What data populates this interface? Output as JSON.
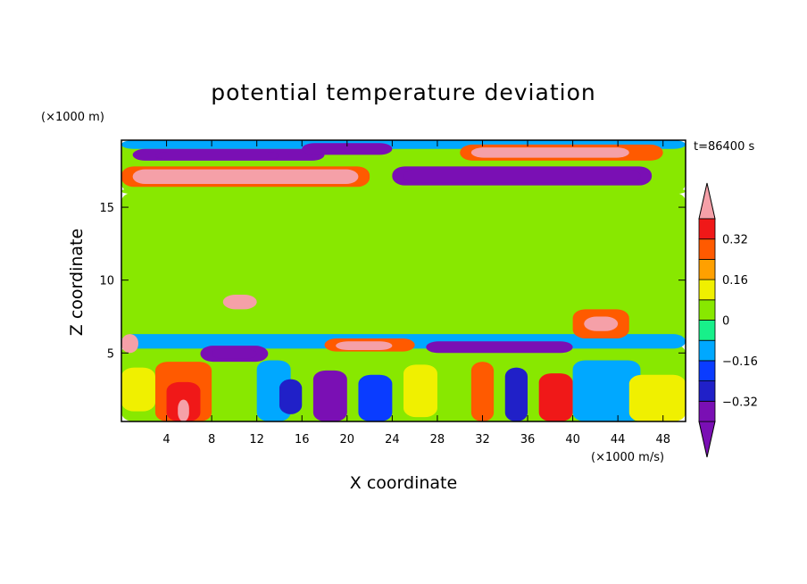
{
  "chart_data": {
    "type": "heatmap",
    "title": "potential temperature deviation",
    "xlabel": "X coordinate",
    "ylabel": "Z coordinate",
    "x_unit": "(×1000 m/s)",
    "y_unit": "(×1000 m)",
    "time_label": "t=86400 s",
    "xlim": [
      0,
      50
    ],
    "ylim": [
      0.3,
      19.6
    ],
    "xticks": [
      4,
      8,
      12,
      16,
      20,
      24,
      28,
      32,
      36,
      40,
      44,
      48
    ],
    "yticks": [
      5,
      10,
      15
    ],
    "colorbar": {
      "levels": [
        -0.4,
        -0.32,
        -0.24,
        -0.16,
        -0.08,
        0,
        0.08,
        0.16,
        0.24,
        0.32,
        0.4
      ],
      "labels": [
        {
          "value": 0.32,
          "text": "0.32"
        },
        {
          "value": 0.16,
          "text": "0.16"
        },
        {
          "value": 0,
          "text": "0"
        },
        {
          "value": -0.16,
          "text": "−0.16"
        },
        {
          "value": -0.32,
          "text": "−0.32"
        }
      ],
      "colors": [
        "#7a0fb4",
        "#2020c8",
        "#0a3cff",
        "#00a8ff",
        "#18f08a",
        "#88e800",
        "#f0f000",
        "#ffa000",
        "#ff5a00",
        "#f01818",
        "#f5a0a8"
      ],
      "over_color": "#f5a0a8",
      "under_color": "#7a0fb4"
    },
    "regions": [
      {
        "x0": 0,
        "x1": 50,
        "y0": 16.0,
        "y1": 19.6,
        "value": 0.0
      },
      {
        "x0": 0,
        "x1": 50,
        "y0": 0.3,
        "y1": 5.6,
        "value": 0.0
      },
      {
        "x0": 0,
        "x1": 50,
        "y0": 5.6,
        "y1": 16.0,
        "value": 0.06
      },
      {
        "x0": 20,
        "x1": 50,
        "y0": 5.6,
        "y1": 16.0,
        "value": 0.0
      },
      {
        "x0": 0,
        "x1": 14,
        "y0": 10.5,
        "y1": 16.0,
        "value": 0.06
      },
      {
        "x0": 0,
        "x1": 50,
        "y0": 19.0,
        "y1": 19.6,
        "value": -0.1
      },
      {
        "x0": 1,
        "x1": 18,
        "y0": 18.2,
        "y1": 19.0,
        "value": -0.34
      },
      {
        "x0": 3,
        "x1": 14,
        "y0": 18.3,
        "y1": 18.8,
        "value": -0.42
      },
      {
        "x0": 16,
        "x1": 24,
        "y0": 18.6,
        "y1": 19.4,
        "value": -0.42
      },
      {
        "x0": 30,
        "x1": 48,
        "y0": 18.2,
        "y1": 19.3,
        "value": 0.3
      },
      {
        "x0": 31,
        "x1": 45,
        "y0": 18.4,
        "y1": 19.1,
        "value": 0.42
      },
      {
        "x0": 0,
        "x1": 22,
        "y0": 16.4,
        "y1": 17.8,
        "value": 0.3
      },
      {
        "x0": 1,
        "x1": 21,
        "y0": 16.6,
        "y1": 17.6,
        "value": 0.42
      },
      {
        "x0": 24,
        "x1": 47,
        "y0": 16.5,
        "y1": 17.8,
        "value": -0.34
      },
      {
        "x0": 25,
        "x1": 46,
        "y0": 16.7,
        "y1": 17.6,
        "value": -0.42
      },
      {
        "x0": 0,
        "x1": 50,
        "y0": 15.9,
        "y1": 16.3,
        "value": 0.0
      },
      {
        "x0": 0,
        "x1": 50,
        "y0": 5.3,
        "y1": 6.3,
        "value": -0.1
      },
      {
        "x0": 7,
        "x1": 13,
        "y0": 4.4,
        "y1": 5.5,
        "value": -0.34
      },
      {
        "x0": 8,
        "x1": 12,
        "y0": 4.6,
        "y1": 5.3,
        "value": -0.42
      },
      {
        "x0": 18,
        "x1": 26,
        "y0": 5.1,
        "y1": 6.0,
        "value": 0.3
      },
      {
        "x0": 19,
        "x1": 24,
        "y0": 5.2,
        "y1": 5.8,
        "value": 0.42
      },
      {
        "x0": 27,
        "x1": 40,
        "y0": 5.0,
        "y1": 5.8,
        "value": -0.34
      },
      {
        "x0": 0,
        "x1": 1.5,
        "y0": 5.0,
        "y1": 6.3,
        "value": 0.42
      },
      {
        "x0": 40,
        "x1": 45,
        "y0": 6.0,
        "y1": 8.0,
        "value": 0.3
      },
      {
        "x0": 41,
        "x1": 44,
        "y0": 6.5,
        "y1": 7.5,
        "value": 0.42
      },
      {
        "x0": 9,
        "x1": 12,
        "y0": 8.0,
        "y1": 9.0,
        "value": 0.42
      },
      {
        "x0": 3,
        "x1": 8,
        "y0": 0.3,
        "y1": 4.4,
        "value": 0.24
      },
      {
        "x0": 4,
        "x1": 7,
        "y0": 0.3,
        "y1": 3.0,
        "value": 0.34
      },
      {
        "x0": 5,
        "x1": 6,
        "y0": 0.3,
        "y1": 1.8,
        "value": 0.42
      },
      {
        "x0": 0,
        "x1": 3,
        "y0": 1.0,
        "y1": 4.0,
        "value": 0.1
      },
      {
        "x0": 12,
        "x1": 15,
        "y0": 0.3,
        "y1": 4.5,
        "value": -0.1
      },
      {
        "x0": 14,
        "x1": 16,
        "y0": 0.8,
        "y1": 3.2,
        "value": -0.26
      },
      {
        "x0": 17,
        "x1": 20,
        "y0": 0.3,
        "y1": 3.8,
        "value": -0.34
      },
      {
        "x0": 21,
        "x1": 24,
        "y0": 0.3,
        "y1": 3.5,
        "value": -0.2
      },
      {
        "x0": 25,
        "x1": 28,
        "y0": 0.6,
        "y1": 4.2,
        "value": 0.12
      },
      {
        "x0": 31,
        "x1": 33,
        "y0": 0.3,
        "y1": 4.4,
        "value": 0.3
      },
      {
        "x0": 34,
        "x1": 36,
        "y0": 0.3,
        "y1": 4.0,
        "value": -0.3
      },
      {
        "x0": 37,
        "x1": 40,
        "y0": 0.3,
        "y1": 3.6,
        "value": 0.34
      },
      {
        "x0": 40,
        "x1": 46,
        "y0": 0.3,
        "y1": 4.5,
        "value": -0.1
      },
      {
        "x0": 45,
        "x1": 50,
        "y0": 0.3,
        "y1": 3.5,
        "value": 0.12
      }
    ]
  }
}
